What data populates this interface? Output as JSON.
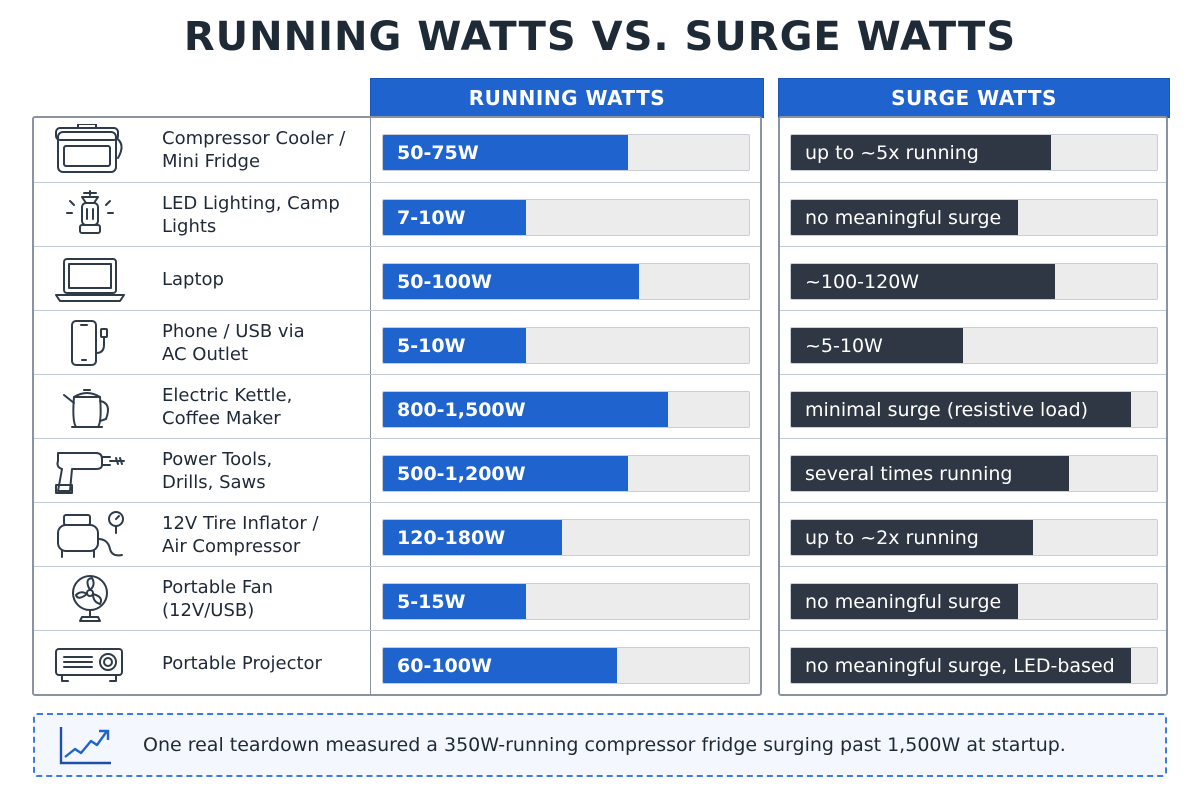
{
  "title": "RUNNING WATTS VS. SURGE WATTS",
  "headers": {
    "running": "RUNNING WATTS",
    "surge": "SURGE WATTS"
  },
  "colors": {
    "running": "#1f63cf",
    "surge": "#2e3743",
    "track": "#ececec",
    "accent": "#1f63cf"
  },
  "chart_data": {
    "type": "table",
    "title": "RUNNING WATTS VS. SURGE WATTS",
    "columns": [
      "RUNNING WATTS",
      "SURGE WATTS"
    ],
    "rows": [
      {
        "label": "Compressor Cooler /\nMini Fridge",
        "icon": "cooler-icon",
        "running": "50-75W",
        "running_fill": 0.67,
        "surge": "up to ~5x running",
        "surge_fill": 0.71
      },
      {
        "label": "LED Lighting, Camp Lights",
        "icon": "lantern-icon",
        "running": "7-10W",
        "running_fill": 0.39,
        "surge": "no meaningful surge",
        "surge_fill": 0.62
      },
      {
        "label": "Laptop",
        "icon": "laptop-icon",
        "running": "50-100W",
        "running_fill": 0.7,
        "surge": "~100-120W",
        "surge_fill": 0.72
      },
      {
        "label": "Phone / USB via\nAC Outlet",
        "icon": "phone-charger-icon",
        "running": "5-10W",
        "running_fill": 0.39,
        "surge": "~5-10W",
        "surge_fill": 0.47
      },
      {
        "label": "Electric Kettle,\nCoffee Maker",
        "icon": "kettle-icon",
        "running": "800-1,500W",
        "running_fill": 0.78,
        "surge": "minimal surge (resistive load)",
        "surge_fill": 0.93
      },
      {
        "label": "Power Tools,\nDrills, Saws",
        "icon": "drill-icon",
        "running": "500-1,200W",
        "running_fill": 0.67,
        "surge": "several times running",
        "surge_fill": 0.76
      },
      {
        "label": "12V Tire Inflator /\nAir Compressor",
        "icon": "compressor-icon",
        "running": "120-180W",
        "running_fill": 0.49,
        "surge": "up to ~2x running",
        "surge_fill": 0.66
      },
      {
        "label": "Portable Fan\n(12V/USB)",
        "icon": "fan-icon",
        "running": "5-15W",
        "running_fill": 0.39,
        "surge": "no meaningful surge",
        "surge_fill": 0.62
      },
      {
        "label": "Portable Projector",
        "icon": "projector-icon",
        "running": "60-100W",
        "running_fill": 0.64,
        "surge": "no meaningful surge, LED-based",
        "surge_fill": 0.93
      }
    ]
  },
  "note": {
    "icon": "trend-up-chart-icon",
    "text": "One real teardown measured a 350W-running compressor fridge surging past 1,500W at startup."
  }
}
